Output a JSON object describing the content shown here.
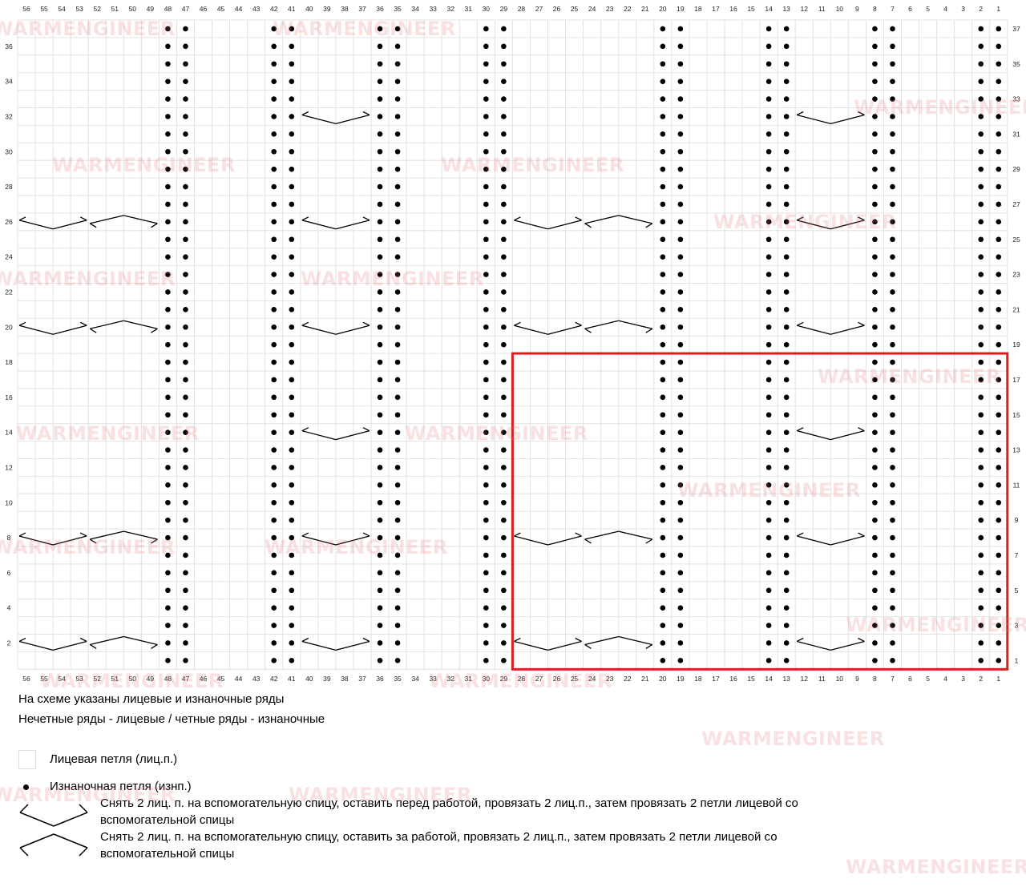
{
  "chart_columns": [
    "56",
    "55",
    "54",
    "53",
    "52",
    "51",
    "50",
    "49",
    "48",
    "47",
    "46",
    "45",
    "44",
    "43",
    "42",
    "41",
    "40",
    "39",
    "38",
    "37",
    "36",
    "35",
    "34",
    "33",
    "32",
    "31",
    "30",
    "29",
    "28",
    "27",
    "26",
    "25",
    "24",
    "23",
    "22",
    "21",
    "20",
    "19",
    "18",
    "17",
    "16",
    "15",
    "14",
    "13",
    "12",
    "11",
    "10",
    "9",
    "8",
    "7",
    "6",
    "5",
    "4",
    "3",
    "2",
    "1"
  ],
  "rows_left": [
    "36",
    "34",
    "32",
    "30",
    "28",
    "26",
    "24",
    "22",
    "20",
    "18",
    "16",
    "14",
    "12",
    "10",
    "8",
    "6",
    "4",
    "2"
  ],
  "rows_right": [
    "37",
    "35",
    "33",
    "31",
    "29",
    "27",
    "25",
    "23",
    "21",
    "19",
    "17",
    "15",
    "13",
    "11",
    "9",
    "7",
    "5",
    "3",
    "1"
  ],
  "purl_columns": [
    48,
    47,
    42,
    41,
    36,
    35,
    30,
    29,
    20,
    19,
    14,
    13,
    8,
    7,
    2,
    1
  ],
  "cables": {
    "wide_group_rows": [
      2,
      8,
      20,
      26
    ],
    "narrow_group_rows": [
      2,
      8,
      14,
      20,
      26,
      32
    ]
  },
  "repeat_box": {
    "columns_from": 28,
    "columns_to": 1,
    "rows_from": 1,
    "rows_to": 18,
    "color": "#d42020"
  },
  "notes": {
    "line1": "На схеме указаны лицевые и изнаночные ряды",
    "line2": "Нечетные ряды - лицевые / четные ряды - изнаночные"
  },
  "legend": {
    "knit": "Лицевая петля (лиц.п.)",
    "purl": "Изнаночная петля (изнп.)",
    "cable_front": "Снять 2 лиц. п. на вспомогательную спицу, оставить перед работой, провязать 2 лиц.п., затем провязать 2 петли лицевой со вспомогательной спицы",
    "cable_back": "Снять 2 лиц. п. на вспомогательную спицу, оставить за работой, провязать 2 лиц.п., затем провязать 2 петли лицевой со вспомогательной спицы"
  },
  "watermark": "WARMENGINEER"
}
